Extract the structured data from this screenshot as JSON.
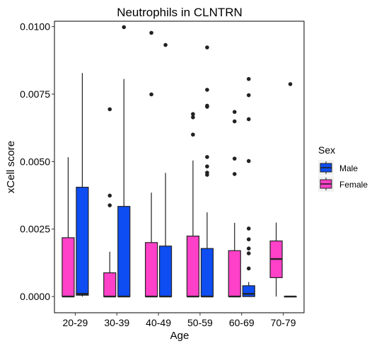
{
  "chart_data": {
    "type": "boxplot",
    "title": "Neutrophils in CLNTRN",
    "xlabel": "Age",
    "ylabel": "xCell score",
    "ylim": [
      -0.0006,
      0.0102
    ],
    "yticks": [
      0.0,
      0.0025,
      0.005,
      0.0075,
      0.01
    ],
    "ytick_labels": [
      "0.0000",
      "0.0025",
      "0.0050",
      "0.0075",
      "0.0100"
    ],
    "categories": [
      "20-29",
      "30-39",
      "40-49",
      "50-59",
      "60-69",
      "70-79"
    ],
    "legend": {
      "title": "Sex",
      "position": "right",
      "entries": [
        {
          "label": "Male",
          "color": "#0D4DF2"
        },
        {
          "label": "Female",
          "color": "#FF40C8"
        }
      ]
    },
    "series": [
      {
        "key": "Female",
        "color": "#FF40C8",
        "boxes": [
          {
            "category": "20-29",
            "q1": 0.0,
            "median": 0.0,
            "q3": 0.00218,
            "whisker_low": 0.0,
            "whisker_high": 0.00516,
            "outliers": []
          },
          {
            "category": "30-39",
            "q1": 0.0,
            "median": 0.0,
            "q3": 0.00088,
            "whisker_low": 0.0,
            "whisker_high": 0.00166,
            "outliers": [
              0.00694,
              0.00374,
              0.00338
            ]
          },
          {
            "category": "40-49",
            "q1": 0.0,
            "median": 0.0,
            "q3": 0.002,
            "whisker_low": 0.0,
            "whisker_high": 0.00385,
            "outliers": [
              0.00977,
              0.00749
            ]
          },
          {
            "category": "50-59",
            "q1": 0.0,
            "median": 0.0,
            "q3": 0.00224,
            "whisker_low": 0.0,
            "whisker_high": 0.00504,
            "outliers": [
              0.00676,
              0.00664,
              0.006
            ]
          },
          {
            "category": "60-69",
            "q1": 0.0,
            "median": 0.0,
            "q3": 0.0017,
            "whisker_low": 0.0,
            "whisker_high": 0.00273,
            "outliers": [
              0.00684,
              0.00649,
              0.00511,
              0.00454
            ]
          },
          {
            "category": "70-79",
            "q1": 0.0007,
            "median": 0.00139,
            "q3": 0.00206,
            "whisker_low": 0.0,
            "whisker_high": 0.00274,
            "outliers": []
          }
        ]
      },
      {
        "key": "Male",
        "color": "#0D4DF2",
        "boxes": [
          {
            "category": "20-29",
            "q1": 5e-05,
            "median": 0.0001,
            "q3": 0.00405,
            "whisker_low": 0.0,
            "whisker_high": 0.00828,
            "outliers": []
          },
          {
            "category": "30-39",
            "q1": 0.0,
            "median": 0.0,
            "q3": 0.00334,
            "whisker_low": 0.0,
            "whisker_high": 0.00806,
            "outliers": [
              0.00998
            ]
          },
          {
            "category": "40-49",
            "q1": 0.0,
            "median": 0.0,
            "q3": 0.00187,
            "whisker_low": 0.0,
            "whisker_high": 0.00458,
            "outliers": [
              0.00932
            ]
          },
          {
            "category": "50-59",
            "q1": 0.0,
            "median": 0.0,
            "q3": 0.00178,
            "whisker_low": 0.0,
            "whisker_high": 0.00312,
            "outliers": [
              0.00923,
              0.00766,
              0.00707,
              0.00703,
              0.00517,
              0.00482,
              0.00459,
              0.00451
            ]
          },
          {
            "category": "60-69",
            "q1": 0.0,
            "median": 0.0001,
            "q3": 0.0004,
            "whisker_low": 0.0,
            "whisker_high": 0.00054,
            "outliers": [
              0.00806,
              0.00746,
              0.00657,
              0.00502,
              0.00252,
              0.00212,
              0.00178,
              0.0016,
              0.00104
            ]
          },
          {
            "category": "70-79",
            "q1": 0.0,
            "median": 0.0,
            "q3": 0.0,
            "whisker_low": 0.0,
            "whisker_high": 0.0,
            "outliers": [
              0.00787
            ]
          }
        ]
      }
    ]
  }
}
